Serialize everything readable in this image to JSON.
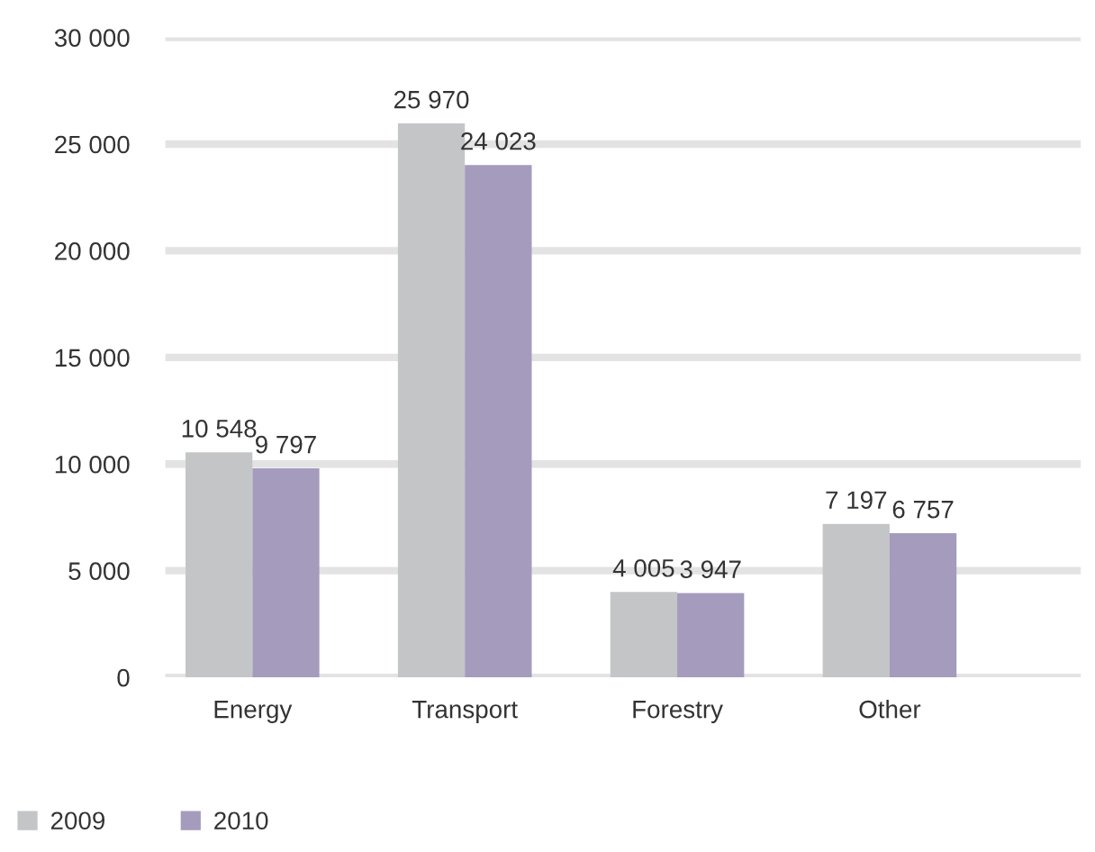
{
  "chart_data": {
    "type": "bar",
    "categories": [
      "Energy",
      "Transport",
      "Forestry",
      "Other"
    ],
    "series": [
      {
        "name": "2009",
        "color": "#c4c5c7",
        "values": [
          10548,
          25970,
          4005,
          7197
        ],
        "value_labels": [
          "10 548",
          "25 970",
          "4 005",
          "7 197"
        ]
      },
      {
        "name": "2010",
        "color": "#a59bbd",
        "values": [
          9797,
          24023,
          3947,
          6757
        ],
        "value_labels": [
          "9 797",
          "24 023",
          "3 947",
          "6 757"
        ]
      }
    ],
    "ylim": [
      0,
      30000
    ],
    "yticks": [
      {
        "value": 0,
        "label": "0"
      },
      {
        "value": 5000,
        "label": "5 000"
      },
      {
        "value": 10000,
        "label": "10 000"
      },
      {
        "value": 15000,
        "label": "15 000"
      },
      {
        "value": 20000,
        "label": "20 000"
      },
      {
        "value": 25000,
        "label": "25 000"
      },
      {
        "value": 30000,
        "label": "30 000"
      }
    ],
    "grid": "y",
    "legend": "bottom left"
  }
}
